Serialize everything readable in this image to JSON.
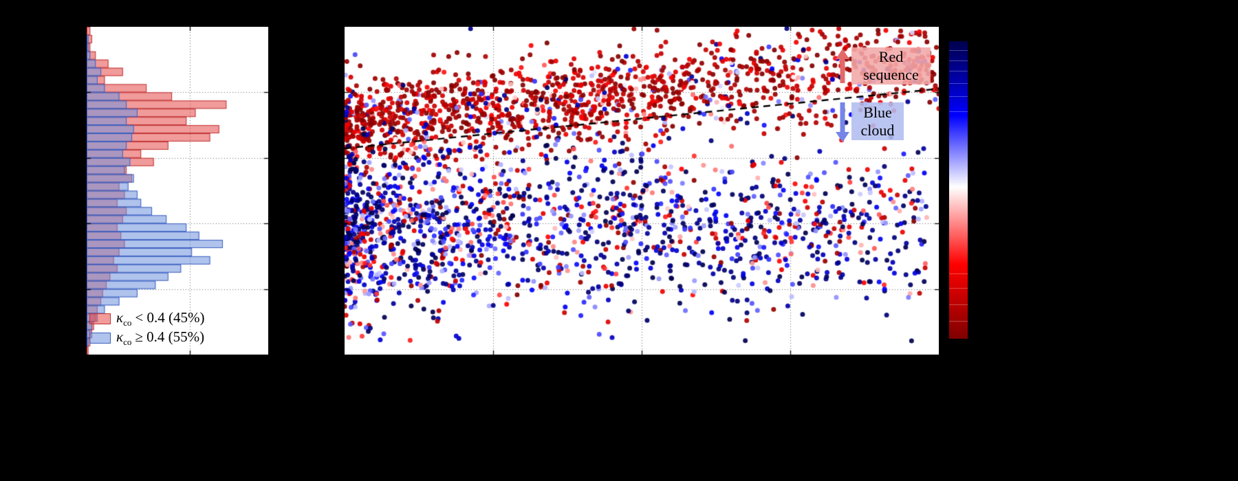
{
  "figure": {
    "background": "#000000",
    "panel_background": "#ffffff"
  },
  "histogram": {
    "legend": [
      {
        "symbol": "κ",
        "subscript": "co",
        "text": "< 0.4 (45%)",
        "edge_color": "#c03434",
        "fill_color": "rgba(229,72,72,0.55)"
      },
      {
        "symbol": "κ",
        "subscript": "co",
        "text": "≥ 0.4 (55%)",
        "edge_color": "#3a5fc0",
        "fill_color": "rgba(112,146,220,0.55)"
      }
    ]
  },
  "annotations": {
    "red_sequence": {
      "label": "Red sequence",
      "box_color": "#f2a8a8",
      "arrow_color": "#e46a6a",
      "arrow_direction": "up"
    },
    "blue_cloud": {
      "label": "Blue cloud",
      "box_color": "#b2bdf0",
      "arrow_color": "#7585e8",
      "arrow_direction": "down"
    }
  },
  "colorbar": {
    "orientation": "vertical",
    "colormap": "seismic",
    "gradient_stops": [
      "#00004d",
      "#0000ff",
      "#ffffff",
      "#ff0000",
      "#7f0000"
    ],
    "top_end": "blue",
    "bottom_end": "red",
    "level_lines": [
      0.03,
      0.065,
      0.1,
      0.14,
      0.185,
      0.235,
      0.78,
      0.83,
      0.885,
      0.94
    ]
  },
  "chart_data": [
    {
      "type": "bar",
      "orientation": "horizontal",
      "bins": 40,
      "grid_x": [
        0.568
      ],
      "grid_y": [
        0.2,
        0.4,
        0.6,
        0.8
      ],
      "series": [
        {
          "name": "κco < 0.4 (45%)",
          "fill": "rgba(229,72,72,0.55)",
          "edge": "#c03434",
          "values": [
            0.02,
            0.03,
            0.02,
            0.05,
            0.12,
            0.2,
            0.1,
            0.33,
            0.47,
            0.77,
            0.6,
            0.55,
            0.73,
            0.68,
            0.45,
            0.3,
            0.37,
            0.22,
            0.25,
            0.18,
            0.21,
            0.17,
            0.22,
            0.2,
            0.17,
            0.19,
            0.21,
            0.18,
            0.15,
            0.17,
            0.13,
            0.11,
            0.09,
            0.08,
            0.06,
            0.05,
            0.04,
            0.03,
            0.02,
            0.01
          ]
        },
        {
          "name": "κco ≥ 0.4 (55%)",
          "fill": "rgba(112,146,220,0.55)",
          "edge": "#3a5fc0",
          "values": [
            0.0,
            0.01,
            0.01,
            0.02,
            0.05,
            0.08,
            0.06,
            0.1,
            0.18,
            0.22,
            0.28,
            0.22,
            0.26,
            0.25,
            0.22,
            0.2,
            0.24,
            0.21,
            0.26,
            0.23,
            0.28,
            0.3,
            0.36,
            0.44,
            0.55,
            0.62,
            0.75,
            0.58,
            0.68,
            0.52,
            0.45,
            0.38,
            0.28,
            0.18,
            0.1,
            0.06,
            0.03,
            0.02,
            0.01,
            0.0
          ]
        }
      ]
    },
    {
      "type": "scatter",
      "colormap": "seismic",
      "point_radius": 3.5,
      "point_alpha": 0.92,
      "seed": 42,
      "grid_x": [
        0.25,
        0.5,
        0.75
      ],
      "grid_y": [
        0.2,
        0.4,
        0.6,
        0.8
      ],
      "divider": {
        "style": "dashed",
        "color": "#000000",
        "y0": 0.371,
        "y1": 0.189
      },
      "populations": [
        {
          "name": "red-sequence",
          "n": 1500,
          "x_pow": 1.35,
          "x_scale": 1.0,
          "follow_line": true,
          "y_offset": -0.075,
          "y_sd": 0.07,
          "purity": 0.8,
          "c_base": 0.7,
          "c_span": 0.3,
          "c_pow": 0.5,
          "mix_lo": 0.0,
          "mix_hi": 1.0
        },
        {
          "name": "blue-cloud",
          "n": 1700,
          "x_pow": 1.7,
          "x_scale": 0.98,
          "follow_line": false,
          "y_center": 0.6,
          "y_sd": 0.125,
          "purity": 0.75,
          "c_base": 0.0,
          "c_span": 0.45,
          "c_pow": 1.6,
          "mix_lo": 0.55,
          "mix_hi": 1.0
        }
      ],
      "outliers": [
        {
          "x": 0.212,
          "y": 0.006,
          "c": 0.08
        },
        {
          "x": 0.37,
          "y": 0.872,
          "c": 0.85
        },
        {
          "x": 0.722,
          "y": 0.862,
          "c": 0.95
        }
      ]
    }
  ]
}
